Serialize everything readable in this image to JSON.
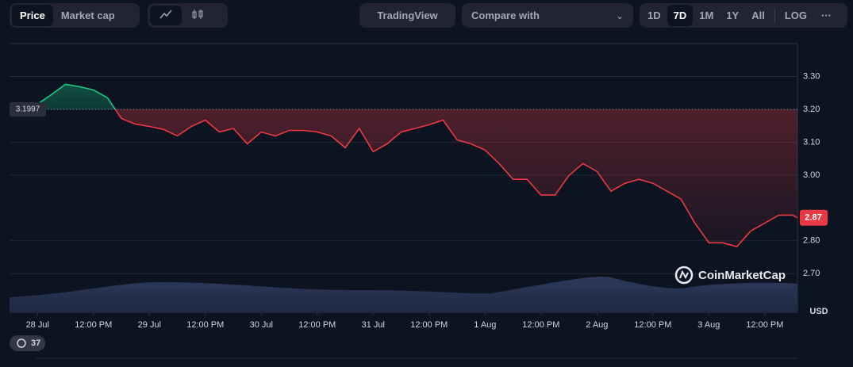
{
  "toolbar": {
    "tabs": [
      "Price",
      "Market cap"
    ],
    "tradingview": "TradingView",
    "compare": "Compare with",
    "ranges": [
      "1D",
      "7D",
      "1M",
      "1Y",
      "All",
      "LOG"
    ],
    "more": "···"
  },
  "watermark": "CoinMarketCap",
  "history_badge": "37",
  "chart_data": {
    "type": "line",
    "currency": "USD",
    "xlim": [
      -6,
      163
    ],
    "xticks": [
      {
        "value": 0,
        "label": "28 Jul"
      },
      {
        "value": 12,
        "label": "12:00 PM"
      },
      {
        "value": 24,
        "label": "29 Jul"
      },
      {
        "value": 36,
        "label": "12:00 PM"
      },
      {
        "value": 48,
        "label": "30 Jul"
      },
      {
        "value": 60,
        "label": "12:00 PM"
      },
      {
        "value": 72,
        "label": "31 Jul"
      },
      {
        "value": 84,
        "label": "12:00 PM"
      },
      {
        "value": 96,
        "label": "1 Aug"
      },
      {
        "value": 108,
        "label": "12:00 PM"
      },
      {
        "value": 120,
        "label": "2 Aug"
      },
      {
        "value": 132,
        "label": "12:00 PM"
      },
      {
        "value": 144,
        "label": "3 Aug"
      },
      {
        "value": 156,
        "label": "12:00 PM"
      }
    ],
    "ylim": [
      2.58,
      3.4
    ],
    "yticks": [
      {
        "value": 2.7,
        "label": "2.70"
      },
      {
        "value": 2.8,
        "label": "2.80"
      },
      {
        "value": 3.0,
        "label": "3.00"
      },
      {
        "value": 3.1,
        "label": "3.10"
      },
      {
        "value": 3.2,
        "label": "3.20"
      },
      {
        "value": 3.3,
        "label": "3.30"
      }
    ],
    "grid": true,
    "reference": 3.1997,
    "up_color": "#16c784",
    "down_color": "#ea3943",
    "x": [
      -6,
      -3,
      0,
      3,
      6,
      9,
      12,
      15,
      18,
      21,
      24,
      27,
      30,
      33,
      36,
      39,
      42,
      45,
      48,
      51,
      54,
      57,
      60,
      63,
      66,
      69,
      72,
      75,
      78,
      81,
      84,
      87,
      90,
      93,
      96,
      99,
      102,
      105,
      108,
      111,
      114,
      117,
      120,
      123,
      126,
      129,
      132,
      135,
      138,
      141,
      144,
      147,
      150,
      153,
      156,
      159,
      162,
      163
    ],
    "values": [
      3.208,
      3.208,
      3.216,
      3.245,
      3.276,
      3.269,
      3.259,
      3.235,
      3.172,
      3.155,
      3.148,
      3.139,
      3.119,
      3.148,
      3.167,
      3.131,
      3.142,
      3.095,
      3.131,
      3.119,
      3.136,
      3.136,
      3.131,
      3.119,
      3.083,
      3.142,
      3.071,
      3.095,
      3.131,
      3.142,
      3.153,
      3.167,
      3.107,
      3.095,
      3.076,
      3.035,
      2.987,
      2.987,
      2.939,
      2.939,
      2.999,
      3.035,
      3.011,
      2.951,
      2.975,
      2.987,
      2.975,
      2.951,
      2.927,
      2.854,
      2.794,
      2.794,
      2.782,
      2.83,
      2.854,
      2.878,
      2.878,
      2.87
    ]
  }
}
